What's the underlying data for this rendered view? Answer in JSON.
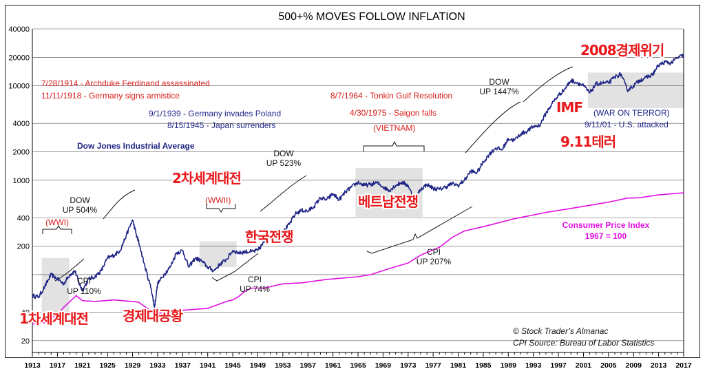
{
  "chart_data": {
    "type": "line",
    "title": "500+% MOVES FOLLOW INFLATION",
    "yscale": "log",
    "ylim": [
      15,
      40000
    ],
    "xlim": [
      1913,
      2017
    ],
    "y_ticks": [
      40000,
      20000,
      10000,
      4000,
      2000,
      1000,
      400,
      200,
      100,
      40,
      20
    ],
    "y_tick_labels": [
      "40000",
      "20000",
      "10000",
      "4000",
      "2000",
      "1000",
      "400",
      "200",
      "",
      "40",
      "20"
    ],
    "x_ticks": [
      "1913",
      "1917",
      "1921",
      "1925",
      "1929",
      "1933",
      "1937",
      "1941",
      "1945",
      "1949",
      "1953",
      "1957",
      "1961",
      "1965",
      "1969",
      "1973",
      "1977",
      "1981",
      "1985",
      "1989",
      "1993",
      "1997",
      "2001",
      "2005",
      "2009",
      "2013",
      "2017"
    ],
    "series": [
      {
        "name": "Dow Jones Industrial Average",
        "color": "#1f2585",
        "x": [
          1913,
          1914,
          1915,
          1916,
          1917,
          1918,
          1919,
          1919.8,
          1920.5,
          1921,
          1922,
          1923,
          1924,
          1925,
          1926,
          1927,
          1928,
          1929,
          1929.7,
          1930,
          1931,
          1932,
          1932.5,
          1933,
          1934,
          1935,
          1936,
          1937,
          1938,
          1939,
          1940,
          1941,
          1942,
          1943,
          1944,
          1945,
          1946,
          1947,
          1948,
          1949,
          1950,
          1951,
          1952,
          1953,
          1954,
          1955,
          1956,
          1957,
          1958,
          1959,
          1960,
          1961,
          1962,
          1963,
          1964,
          1965,
          1966,
          1967,
          1968,
          1969,
          1970,
          1971,
          1972,
          1973,
          1974,
          1975,
          1976,
          1977,
          1978,
          1979,
          1980,
          1981,
          1982,
          1983,
          1984,
          1985,
          1986,
          1987,
          1988,
          1989,
          1990,
          1991,
          1992,
          1993,
          1994,
          1995,
          1996,
          1997,
          1998,
          1999,
          2000,
          2001,
          2002,
          2003,
          2004,
          2005,
          2006,
          2007,
          2008,
          2009,
          2010,
          2011,
          2012,
          2013,
          2014,
          2015,
          2016,
          2017
        ],
        "values": [
          60,
          58,
          75,
          100,
          90,
          80,
          100,
          110,
          80,
          68,
          90,
          95,
          110,
          150,
          160,
          180,
          260,
          380,
          250,
          220,
          120,
          70,
          45,
          80,
          100,
          120,
          170,
          180,
          120,
          150,
          140,
          120,
          110,
          130,
          145,
          180,
          170,
          175,
          175,
          180,
          220,
          260,
          280,
          280,
          340,
          440,
          480,
          470,
          530,
          650,
          620,
          720,
          620,
          750,
          850,
          950,
          880,
          900,
          940,
          850,
          780,
          880,
          950,
          880,
          620,
          800,
          900,
          820,
          800,
          850,
          920,
          880,
          1000,
          1250,
          1200,
          1550,
          1900,
          2200,
          2100,
          2750,
          2650,
          3100,
          3300,
          3700,
          3800,
          5100,
          6500,
          7900,
          9200,
          11400,
          10800,
          10000,
          8400,
          10400,
          10700,
          10700,
          12400,
          13300,
          9000,
          10000,
          11500,
          12200,
          13100,
          16500,
          17800,
          17400,
          19800,
          21000
        ]
      },
      {
        "name": "Consumer Price Index",
        "color": "#e010e0",
        "x": [
          1913,
          1915,
          1917,
          1918,
          1919,
          1920,
          1921,
          1923,
          1926,
          1929,
          1930,
          1932,
          1933,
          1937,
          1941,
          1944,
          1945,
          1946,
          1947,
          1948,
          1950,
          1953,
          1956,
          1960,
          1965,
          1967,
          1970,
          1973,
          1975,
          1978,
          1980,
          1982,
          1985,
          1990,
          1995,
          2000,
          2005,
          2008,
          2010,
          2013,
          2017
        ],
        "values": [
          30,
          31,
          38,
          45,
          52,
          60,
          53,
          52,
          54,
          52,
          51,
          41,
          39,
          42,
          44,
          52,
          54,
          59,
          67,
          72,
          72,
          80,
          82,
          89,
          95,
          100,
          116,
          133,
          161,
          195,
          247,
          290,
          322,
          391,
          456,
          515,
          585,
          646,
          653,
          699,
          735
        ]
      }
    ],
    "legend": {
      "dow_label": "Dow Jones Industrial Average",
      "cpi_label": "Consumer Price Index",
      "cpi_base": "1967 = 100"
    },
    "annotations": {
      "red_events": [
        "7/28/1914 - Archduke Ferdinand assassinated",
        "11/11/1918 - Germany signs armistice",
        "8/7/1964 - Tonkin Gulf Resolution",
        "4/30/1975 - Saigon falls",
        "(VIETNAM)",
        "(WWI)",
        "(WWII)"
      ],
      "blue_events": [
        "9/1/1939 - Germany invades Poland",
        "8/15/1945 - Japan surrenders",
        "(WAR ON TERROR)",
        "9/11/01 - U.S. attacked"
      ],
      "moves": [
        {
          "line1": "DOW",
          "line2": "UP 504%"
        },
        {
          "line1": "DOW",
          "line2": "UP 523%"
        },
        {
          "line1": "DOW",
          "line2": "UP 1447%"
        },
        {
          "line1": "CPI",
          "line2": "UP 110%"
        },
        {
          "line1": "CPI",
          "line2": "UP 74%"
        },
        {
          "line1": "CPI",
          "line2": "UP 207%"
        }
      ],
      "korean_labels": [
        "2008경제위기",
        "IMF",
        "9.11테러",
        "2차세계대전",
        "베트남전쟁",
        "한국전쟁",
        "1차세계대전",
        "경제대공황"
      ],
      "credit": "© Stock Trader’s Almanac",
      "source": "CPI Source: Bureau of Labor Statistics"
    }
  }
}
